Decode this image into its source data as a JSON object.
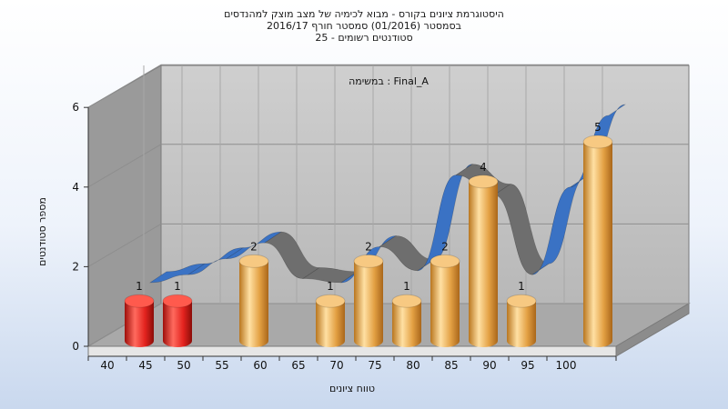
{
  "chart_data": {
    "type": "bar",
    "title": "היסטוגרמת ציונים בקורס - מבוא לכימיה של מצב מוצק למהנדסים",
    "subtitle_1": "בסמסטר  (01/2016)  סמסטר חורף 2016/17",
    "subtitle_2": "סטודנטים רשומים - 25",
    "inner_label": "במשימה : Final_A",
    "xlabel": "טווח ציונים",
    "ylabel": "מספר סטודנטים",
    "ylim": [
      0,
      6
    ],
    "y_ticks": [
      "0",
      "2",
      "4",
      "6"
    ],
    "x_ticks": [
      "40",
      "45",
      "50",
      "55",
      "60",
      "65",
      "70",
      "75",
      "80",
      "85",
      "90",
      "95",
      "100"
    ],
    "categories": [
      "40",
      "45",
      "55",
      "65",
      "70",
      "75",
      "80",
      "85",
      "90",
      "100"
    ],
    "values": [
      1,
      1,
      2,
      1,
      2,
      1,
      2,
      4,
      1,
      5
    ],
    "bar_labels": [
      "1",
      "1",
      "2",
      "1",
      "2",
      "1",
      "2",
      "4",
      "1",
      "5"
    ],
    "bar_colors": [
      "#e3231e",
      "#e3231e",
      "#e6a542",
      "#e6a542",
      "#e6a542",
      "#e6a542",
      "#e6a542",
      "#e6a542",
      "#e6a542",
      "#e6a542"
    ],
    "ribbon": {
      "x": [
        45,
        50,
        55,
        60,
        65,
        70,
        75,
        80,
        85,
        90,
        95,
        100,
        105
      ],
      "y": [
        1.6,
        1.8,
        2.2,
        2.6,
        1.7,
        1.6,
        2.5,
        1.9,
        4.3,
        3.8,
        1.8,
        4.0,
        5.8
      ]
    },
    "grid": true,
    "colors": {
      "red_bar": "#e3231e",
      "orange_bar": "#e6a542",
      "ribbon_front": "#3a72c4",
      "ribbon_back": "#6e6e6e",
      "wall": "#c4c4c4"
    }
  }
}
